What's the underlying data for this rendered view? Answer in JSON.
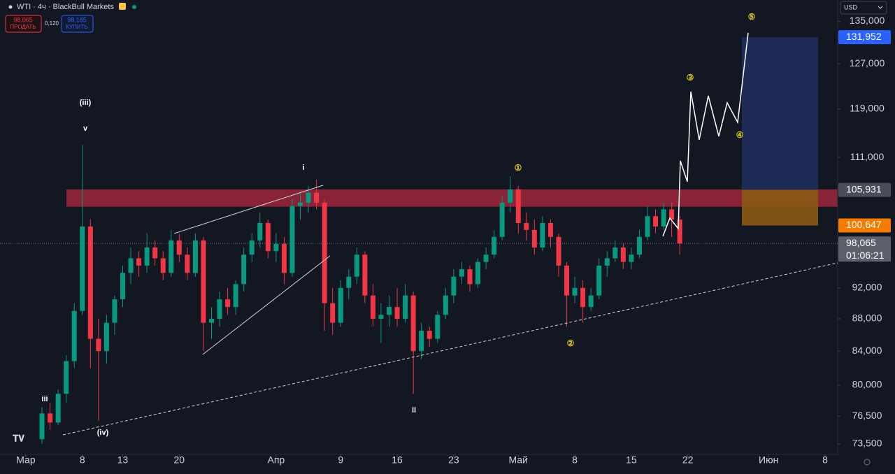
{
  "chart_data": {
    "type": "candlestick",
    "symbol": "WTI · 4ч · BlackBull Markets",
    "sell_price": "98,065",
    "sell_label": "ПРОДАТЬ",
    "spread": "0,120",
    "buy_price": "98,185",
    "buy_label": "КУПИТЬ",
    "currency": "USD",
    "log_scale": true,
    "up_color": "#089981",
    "down_color": "#f23645",
    "x": [
      2,
      3,
      4,
      5,
      6,
      7,
      8,
      9,
      10,
      11,
      12,
      13,
      14,
      15,
      16,
      17,
      18,
      19,
      20,
      21,
      22,
      23,
      24,
      25,
      26,
      27,
      28,
      29,
      30,
      31,
      32,
      33,
      34,
      35,
      36,
      37,
      38,
      39,
      40,
      41,
      42,
      43,
      44,
      45,
      46,
      47,
      48,
      49,
      50,
      51,
      52,
      53,
      54,
      55,
      56,
      57,
      58,
      59,
      60,
      61,
      62,
      63,
      64,
      65,
      66,
      67,
      68,
      69,
      70,
      71,
      72,
      73,
      74,
      75,
      76,
      77,
      78,
      79,
      80,
      81
    ],
    "open": [
      74000,
      76800,
      75800,
      79000,
      82800,
      89000,
      100500,
      85500,
      84000,
      87500,
      90500,
      94000,
      96000,
      95000,
      97500,
      96000,
      94000,
      98500,
      96500,
      94000,
      98500,
      87500,
      88000,
      90500,
      89500,
      92500,
      96500,
      98500,
      101000,
      97000,
      98000,
      94000,
      103500,
      104000,
      105500,
      104000,
      90000,
      87500,
      92000,
      93500,
      96500,
      91000,
      88000,
      88500,
      89500,
      88000,
      91000,
      84000,
      86500,
      85500,
      88500,
      91000,
      93500,
      94500,
      92500,
      95500,
      96500,
      99000,
      104000,
      106000,
      101000,
      100000,
      97500,
      101000,
      99000,
      95000,
      91000,
      92000,
      89500,
      91000,
      95000,
      96000,
      97500,
      95500,
      96500,
      99000,
      102000,
      100500,
      103000,
      101500
    ],
    "high": [
      77500,
      78000,
      79500,
      83500,
      90000,
      113000,
      101500,
      88000,
      88500,
      91000,
      95000,
      97500,
      97000,
      99500,
      98500,
      97000,
      100000,
      99500,
      97500,
      99500,
      99000,
      89500,
      91500,
      92000,
      93000,
      97500,
      99500,
      102500,
      101500,
      99500,
      99000,
      104500,
      105500,
      106500,
      107500,
      104500,
      92000,
      93000,
      94500,
      97500,
      97000,
      92500,
      90000,
      91000,
      92000,
      92500,
      91500,
      87500,
      87000,
      89000,
      92000,
      94500,
      95500,
      95000,
      96000,
      97500,
      100000,
      105000,
      108000,
      106500,
      102500,
      101500,
      102000,
      101500,
      99500,
      95500,
      93500,
      93000,
      92000,
      96000,
      97000,
      98500,
      98000,
      97500,
      100000,
      103500,
      103000,
      104000,
      104000,
      102000
    ],
    "low": [
      73500,
      75000,
      75500,
      78000,
      82000,
      88500,
      82000,
      76000,
      82500,
      86000,
      89500,
      92500,
      93500,
      94000,
      95000,
      93000,
      93500,
      95500,
      93000,
      93500,
      84000,
      85500,
      87000,
      88500,
      88500,
      91500,
      95500,
      97500,
      96000,
      95500,
      92500,
      93500,
      101500,
      102500,
      103000,
      86500,
      86000,
      87000,
      90500,
      92500,
      90000,
      87000,
      85000,
      87000,
      87000,
      87500,
      79000,
      83000,
      84500,
      85000,
      88000,
      90000,
      92500,
      91500,
      92000,
      94500,
      96000,
      98500,
      102500,
      99500,
      98500,
      96500,
      97000,
      97500,
      93500,
      87000,
      90000,
      87500,
      89000,
      90500,
      93500,
      95500,
      94500,
      94500,
      96000,
      98500,
      99500,
      100000,
      99000,
      96500
    ],
    "close": [
      76800,
      75800,
      79000,
      82800,
      89000,
      100500,
      85500,
      84000,
      87500,
      90500,
      94000,
      96000,
      95000,
      97500,
      96000,
      94000,
      98500,
      96500,
      94000,
      98500,
      87500,
      88000,
      90500,
      89500,
      92500,
      96500,
      98500,
      101000,
      97000,
      98000,
      94000,
      103500,
      104000,
      105500,
      104000,
      90000,
      87500,
      92000,
      93500,
      96500,
      91000,
      88000,
      88500,
      89500,
      88000,
      91000,
      84000,
      86500,
      85500,
      88500,
      91000,
      93500,
      94500,
      92500,
      95500,
      96500,
      99000,
      104000,
      106000,
      101000,
      100000,
      97500,
      101000,
      99000,
      95000,
      91000,
      92000,
      89500,
      91000,
      95000,
      96000,
      97500,
      95500,
      96500,
      99000,
      102000,
      100500,
      103000,
      101500,
      98065
    ],
    "xlim": [
      -3.2,
      100.56
    ],
    "xticks": [
      {
        "value": 0,
        "label": "Мар"
      },
      {
        "value": 7,
        "label": "8"
      },
      {
        "value": 12,
        "label": "13"
      },
      {
        "value": 19,
        "label": "20"
      },
      {
        "value": 31,
        "label": "Апр"
      },
      {
        "value": 39,
        "label": "9"
      },
      {
        "value": 46,
        "label": "16"
      },
      {
        "value": 53,
        "label": "23"
      },
      {
        "value": 61,
        "label": "Май"
      },
      {
        "value": 68,
        "label": "8"
      },
      {
        "value": 75,
        "label": "15"
      },
      {
        "value": 82,
        "label": "22"
      },
      {
        "value": 92,
        "label": "Июн"
      },
      {
        "value": 99,
        "label": "8"
      }
    ],
    "ylim": [
      72400,
      139200
    ],
    "yticks": [
      {
        "value": 135000,
        "label": "135,000"
      },
      {
        "value": 127000,
        "label": "127,000"
      },
      {
        "value": 119000,
        "label": "119,000"
      },
      {
        "value": 111000,
        "label": "111,000"
      },
      {
        "value": 92000,
        "label": "92,000"
      },
      {
        "value": 88000,
        "label": "88,000"
      },
      {
        "value": 84000,
        "label": "84,000"
      },
      {
        "value": 80000,
        "label": "80,000"
      },
      {
        "value": 76500,
        "label": "76,500"
      },
      {
        "value": 73500,
        "label": "73,500"
      }
    ],
    "price_tags": [
      {
        "value": 131952,
        "label": "131,952",
        "color": "#2962ff"
      },
      {
        "value": 105931,
        "label": "105,931",
        "color": "#4a4e59"
      },
      {
        "value": 100647,
        "label": "100,647",
        "color": "#f57c00"
      },
      {
        "value": 98065,
        "label": "98,065",
        "color": "#5d606b"
      }
    ],
    "countdown": "01:06:21",
    "zones": [
      {
        "low": 103400,
        "high": 106000,
        "color": "#b2283f"
      },
      {
        "low": 105931,
        "high": 131952,
        "color": "#1f2d5c"
      },
      {
        "low": 100647,
        "high": 105931,
        "color": "#8a5a12"
      }
    ],
    "annotations": [
      "(iii)",
      "v",
      "i",
      "①",
      "②",
      "③",
      "④",
      "⑤",
      "iii",
      "(iv)",
      "ii"
    ]
  }
}
